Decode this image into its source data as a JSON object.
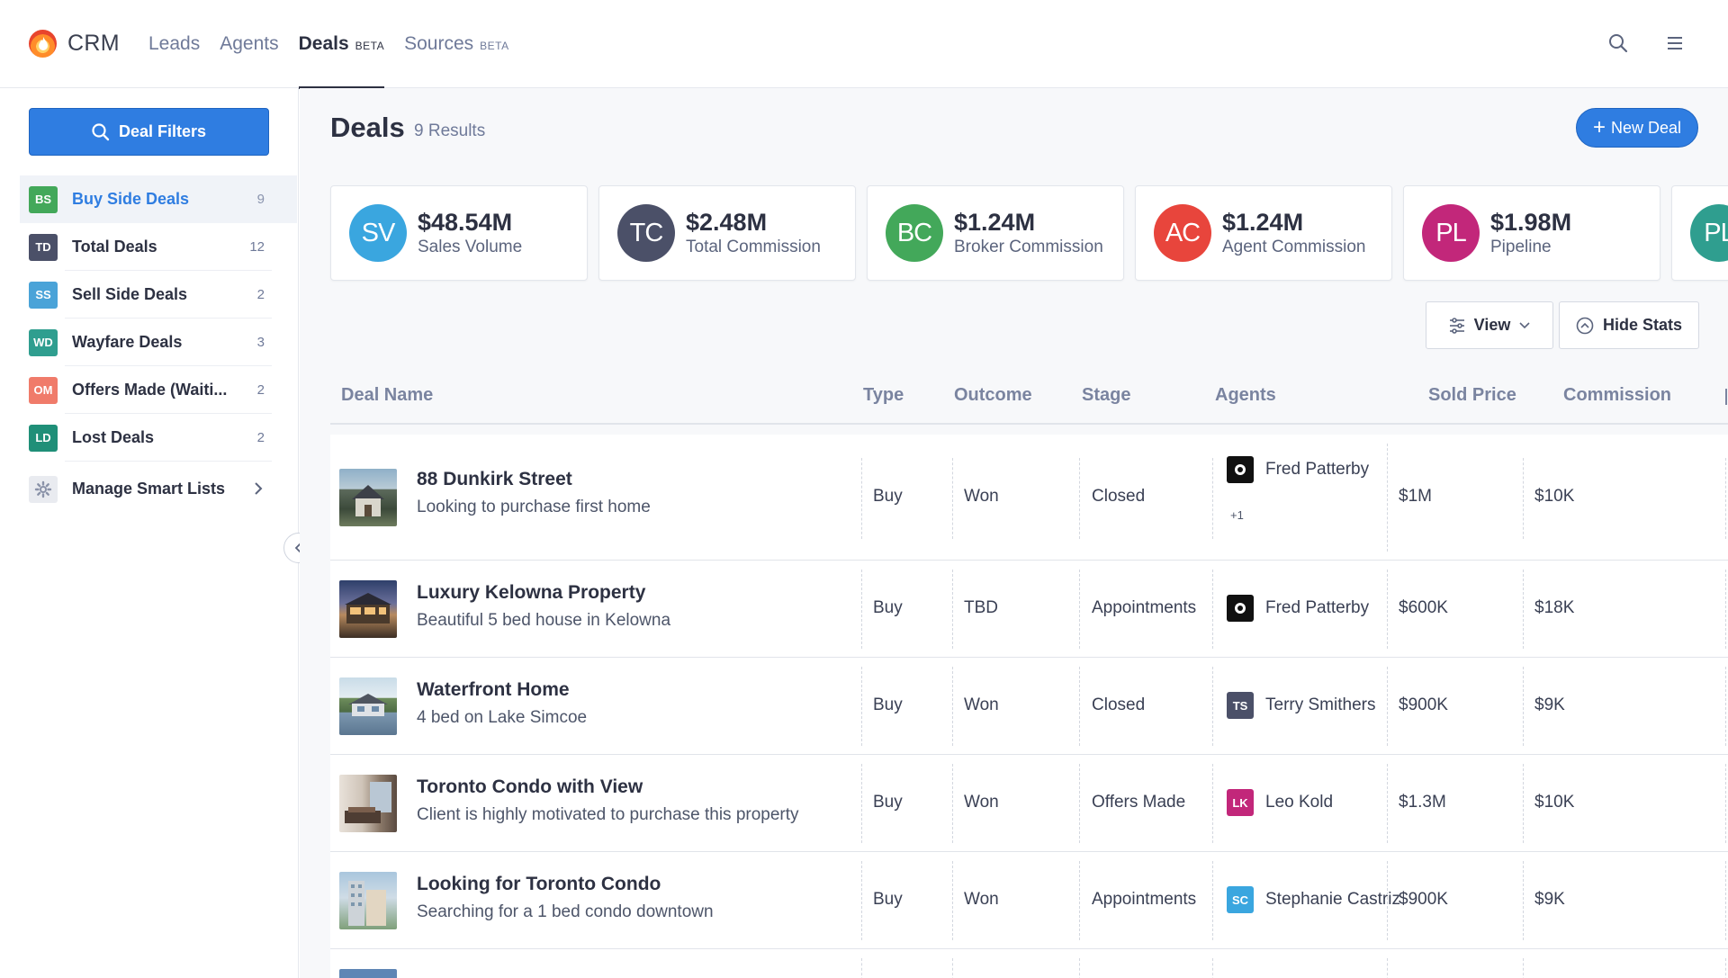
{
  "brand": {
    "name": "CRM"
  },
  "nav": {
    "tabs": [
      {
        "label": "Leads",
        "badge": ""
      },
      {
        "label": "Agents",
        "badge": ""
      },
      {
        "label": "Deals",
        "badge": "BETA"
      },
      {
        "label": "Sources",
        "badge": "BETA"
      }
    ]
  },
  "sidebar": {
    "filter_button": "Deal Filters",
    "items": [
      {
        "badge": "BS",
        "label": "Buy Side Deals",
        "count": "9",
        "color": "#43a85a"
      },
      {
        "badge": "TD",
        "label": "Total Deals",
        "count": "12",
        "color": "#4b5068"
      },
      {
        "badge": "SS",
        "label": "Sell Side Deals",
        "count": "2",
        "color": "#4aa3d8"
      },
      {
        "badge": "WD",
        "label": "Wayfare Deals",
        "count": "3",
        "color": "#2f9e8f"
      },
      {
        "badge": "OM",
        "label": "Offers Made (Waiti...",
        "count": "2",
        "color": "#f07b6a"
      },
      {
        "badge": "LD",
        "label": "Lost Deals",
        "count": "2",
        "color": "#1f8f78"
      }
    ],
    "manage_label": "Manage Smart Lists"
  },
  "main": {
    "title": "Deals",
    "result_count": "9 Results",
    "new_deal_label": "New Deal",
    "stats": [
      {
        "initials": "SV",
        "value": "$48.54M",
        "label": "Sales Volume",
        "color": "#3aa6df"
      },
      {
        "initials": "TC",
        "value": "$2.48M",
        "label": "Total Commission",
        "color": "#4b5068"
      },
      {
        "initials": "BC",
        "value": "$1.24M",
        "label": "Broker Commission",
        "color": "#43a85a"
      },
      {
        "initials": "AC",
        "value": "$1.24M",
        "label": "Agent Commission",
        "color": "#e8453c"
      },
      {
        "initials": "PL",
        "value": "$1.98M",
        "label": "Pipeline",
        "color": "#c2277a"
      },
      {
        "initials": "PL",
        "value": "",
        "label": "",
        "color": "#2f9e8f"
      }
    ],
    "view_label": "View",
    "hide_stats_label": "Hide Stats",
    "columns": [
      "Deal Name",
      "Type",
      "Outcome",
      "Stage",
      "Agents",
      "Sold Price",
      "Commission"
    ],
    "rows": [
      {
        "name": "88 Dunkirk Street",
        "desc": "Looking to purchase first home",
        "type": "Buy",
        "outcome": "Won",
        "stage": "Closed",
        "agent": "Fred Patterby",
        "agent_initials": "",
        "agent_color": "#111111",
        "agent_more": "+1",
        "price": "$1M",
        "commission": "$10K"
      },
      {
        "name": "Luxury Kelowna Property",
        "desc": "Beautiful 5 bed house in Kelowna",
        "type": "Buy",
        "outcome": "TBD",
        "stage": "Appointments",
        "agent": "Fred Patterby",
        "agent_initials": "",
        "agent_color": "#111111",
        "agent_more": "",
        "price": "$600K",
        "commission": "$18K"
      },
      {
        "name": "Waterfront Home",
        "desc": "4 bed on Lake Simcoe",
        "type": "Buy",
        "outcome": "Won",
        "stage": "Closed",
        "agent": "Terry Smithers",
        "agent_initials": "TS",
        "agent_color": "#4b5068",
        "agent_more": "",
        "price": "$900K",
        "commission": "$9K"
      },
      {
        "name": "Toronto Condo with View",
        "desc": "Client is highly motivated to purchase this property",
        "type": "Buy",
        "outcome": "Won",
        "stage": "Offers Made",
        "agent": "Leo Kold",
        "agent_initials": "LK",
        "agent_color": "#c2277a",
        "agent_more": "",
        "price": "$1.3M",
        "commission": "$10K"
      },
      {
        "name": "Looking for Toronto Condo",
        "desc": "Searching for a 1 bed condo downtown",
        "type": "Buy",
        "outcome": "Won",
        "stage": "Appointments",
        "agent": "Stephanie Castriz",
        "agent_initials": "SC",
        "agent_color": "#3aa6df",
        "agent_more": "",
        "price": "$900K",
        "commission": "$9K"
      }
    ]
  }
}
